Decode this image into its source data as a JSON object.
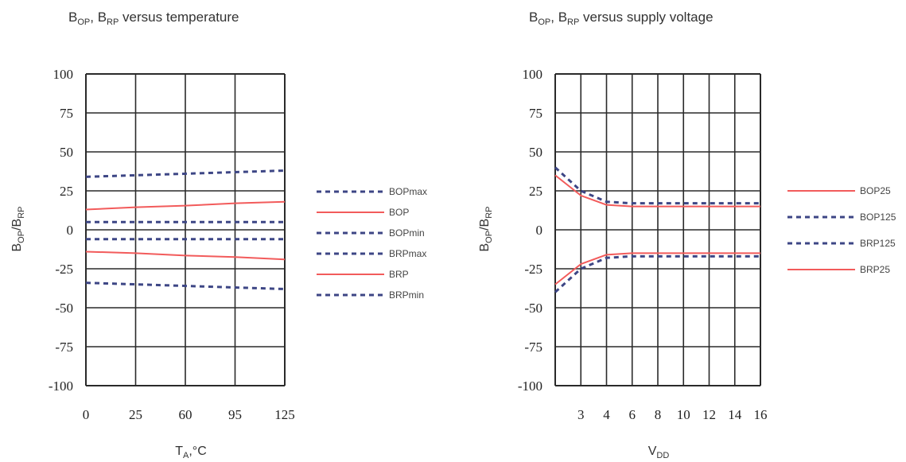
{
  "colors": {
    "solid": "#f25b5b",
    "dashed": "#3d4685",
    "grid": "#2a2a2a"
  },
  "chart_data": [
    {
      "type": "line",
      "title": {
        "main1": "B",
        "sub1": "OP",
        "main2": ", B",
        "sub2": "RP",
        "rest": " versus temperature"
      },
      "xlabel": {
        "main": "T",
        "sub": "A",
        "rest": ",°C"
      },
      "ylabel": {
        "main1": "B",
        "sub1": "OP",
        "main2": "/B",
        "sub2": "RP"
      },
      "categories": [
        "0",
        "25",
        "60",
        "95",
        "125"
      ],
      "ylim": [
        -100,
        100
      ],
      "yticks": [
        "100",
        "75",
        "50",
        "25",
        "0",
        "-25",
        "-50",
        "-75",
        "-100"
      ],
      "grid": true,
      "legend_position": "right",
      "series": [
        {
          "name": "BOPmax",
          "style": "dashed",
          "values": [
            34,
            35,
            36,
            37,
            38
          ]
        },
        {
          "name": "BOP",
          "style": "solid",
          "values": [
            13,
            14.5,
            15.5,
            17,
            18
          ]
        },
        {
          "name": "BOPmin",
          "style": "dashed",
          "values": [
            5,
            5,
            5,
            5,
            5
          ]
        },
        {
          "name": "BRPmax",
          "style": "dashed",
          "values": [
            -6,
            -6,
            -6,
            -6,
            -6
          ]
        },
        {
          "name": "BRP",
          "style": "solid",
          "values": [
            -14,
            -15,
            -16.5,
            -17.5,
            -19
          ]
        },
        {
          "name": "BRPmin",
          "style": "dashed",
          "values": [
            -34,
            -35,
            -36,
            -37,
            -38
          ]
        }
      ]
    },
    {
      "type": "line",
      "title": {
        "main1": "B",
        "sub1": "OP",
        "main2": ", B",
        "sub2": "RP",
        "rest": " versus supply voltage"
      },
      "xlabel": {
        "main": "V",
        "sub": "DD",
        "rest": ""
      },
      "ylabel": {
        "main1": "B",
        "sub1": "OP",
        "main2": "/B",
        "sub2": "RP"
      },
      "xticks": [
        "3",
        "4",
        "6",
        "8",
        "10",
        "12",
        "14",
        "16"
      ],
      "ylim": [
        -100,
        100
      ],
      "yticks": [
        "100",
        "75",
        "50",
        "25",
        "0",
        "-25",
        "-50",
        "-75",
        "-100"
      ],
      "grid": true,
      "legend_position": "right",
      "series": [
        {
          "name": "BOP25",
          "style": "solid",
          "values": [
            35,
            22,
            16,
            15,
            15,
            15,
            15,
            15,
            15
          ]
        },
        {
          "name": "BOP125",
          "style": "dashed",
          "values": [
            40,
            25,
            18,
            17,
            17,
            17,
            17,
            17,
            17
          ]
        },
        {
          "name": "BRP125",
          "style": "dashed",
          "values": [
            -40,
            -25,
            -18,
            -17,
            -17,
            -17,
            -17,
            -17,
            -17
          ]
        },
        {
          "name": "BRP25",
          "style": "solid",
          "values": [
            -35,
            -22,
            -16,
            -15,
            -15,
            -15,
            -15,
            -15,
            -15
          ]
        }
      ]
    }
  ]
}
